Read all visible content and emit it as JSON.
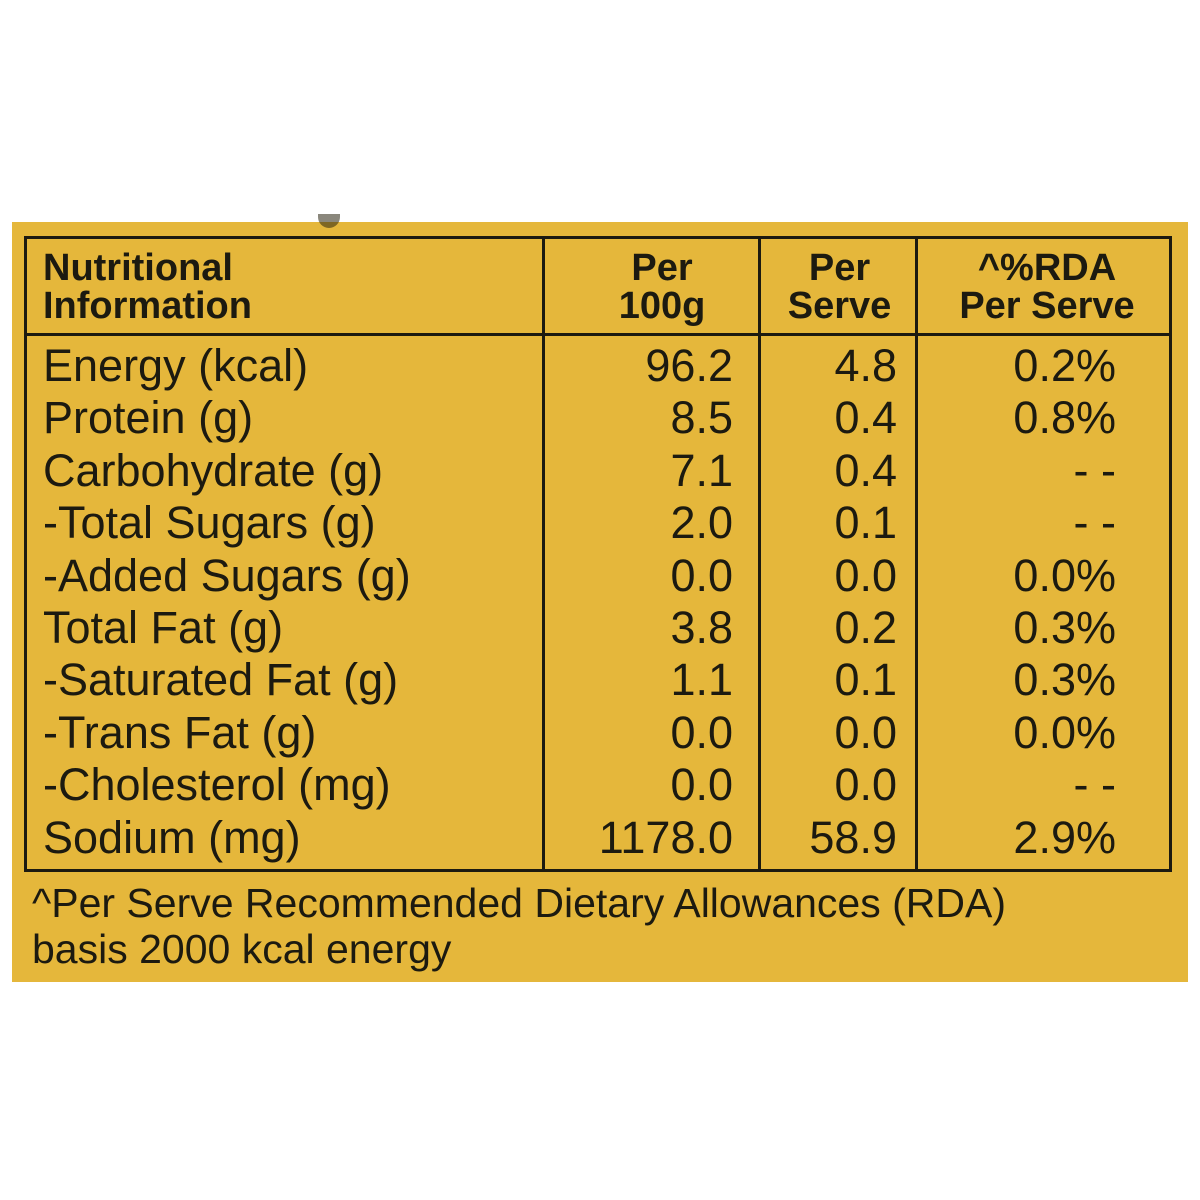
{
  "headers": {
    "col1": [
      "Nutritional",
      "Information"
    ],
    "col2": [
      "Per",
      "100g"
    ],
    "col3": [
      "Per",
      "Serve"
    ],
    "col4": [
      "^%RDA",
      "Per Serve"
    ]
  },
  "rows": [
    {
      "label": "Energy (kcal)",
      "per100": "96.2",
      "perServe": "4.8",
      "rda": "0.2%"
    },
    {
      "label": "Protein (g)",
      "per100": "8.5",
      "perServe": "0.4",
      "rda": "0.8%"
    },
    {
      "label": "Carbohydrate (g)",
      "per100": "7.1",
      "perServe": "0.4",
      "rda": "- -"
    },
    {
      "label": "-Total Sugars (g)",
      "per100": "2.0",
      "perServe": "0.1",
      "rda": "- -"
    },
    {
      "label": "-Added Sugars (g)",
      "per100": "0.0",
      "perServe": "0.0",
      "rda": "0.0%"
    },
    {
      "label": "Total Fat (g)",
      "per100": "3.8",
      "perServe": "0.2",
      "rda": "0.3%"
    },
    {
      "label": "-Saturated Fat (g)",
      "per100": "1.1",
      "perServe": "0.1",
      "rda": "0.3%"
    },
    {
      "label": "-Trans Fat (g)",
      "per100": "0.0",
      "perServe": "0.0",
      "rda": "0.0%"
    },
    {
      "label": "-Cholesterol (mg)",
      "per100": "0.0",
      "perServe": "0.0",
      "rda": "- -"
    },
    {
      "label": "Sodium (mg)",
      "per100": "1178.0",
      "perServe": "58.9",
      "rda": "2.9%"
    }
  ],
  "footnote": [
    "^Per Serve Recommended Dietary Allowances (RDA)",
    "basis 2000 kcal energy"
  ],
  "colors": {
    "panel": "#e5b73b",
    "ink": "#1c1a10"
  }
}
